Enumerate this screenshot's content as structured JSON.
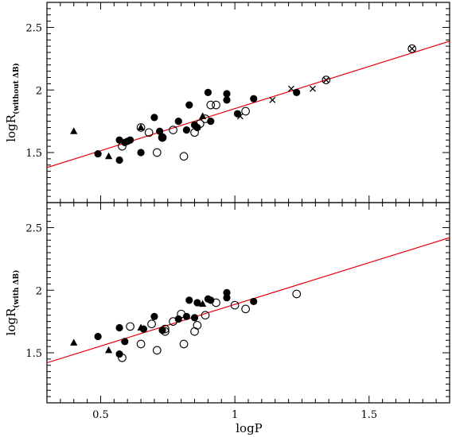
{
  "chart_data": [
    {
      "type": "scatter",
      "xlabel": "logP",
      "ylabel_main": "logR",
      "ylabel_sub": "(without ΔB)",
      "xlim": [
        0.3,
        1.8
      ],
      "ylim": [
        1.1,
        2.7
      ],
      "x_ticks": [
        0.5,
        1,
        1.5
      ],
      "x_tick_labels": [
        "0.5",
        "1",
        "1.5"
      ],
      "y_ticks": [
        1.5,
        2,
        2.5
      ],
      "y_tick_labels": [
        "1.5",
        "2",
        "2.5"
      ],
      "fit_line": {
        "x": [
          0.3,
          1.8
        ],
        "y": [
          1.38,
          2.39
        ],
        "color": "#e8000b"
      },
      "series": [
        {
          "marker": "filled-circle",
          "points": [
            [
              0.49,
              1.49
            ],
            [
              0.57,
              1.6
            ],
            [
              0.57,
              1.44
            ],
            [
              0.59,
              1.58
            ],
            [
              0.6,
              1.59
            ],
            [
              0.61,
              1.6
            ],
            [
              0.65,
              1.5
            ],
            [
              0.7,
              1.78
            ],
            [
              0.72,
              1.67
            ],
            [
              0.73,
              1.62
            ],
            [
              0.79,
              1.75
            ],
            [
              0.82,
              1.68
            ],
            [
              0.83,
              1.88
            ],
            [
              0.85,
              1.72
            ],
            [
              0.86,
              1.7
            ],
            [
              0.9,
              1.98
            ],
            [
              0.91,
              1.75
            ],
            [
              0.97,
              1.92
            ],
            [
              0.97,
              1.97
            ],
            [
              1.01,
              1.81
            ],
            [
              1.07,
              1.93
            ],
            [
              1.23,
              1.98
            ]
          ]
        },
        {
          "marker": "open-circle",
          "points": [
            [
              0.58,
              1.55
            ],
            [
              0.65,
              1.7
            ],
            [
              0.68,
              1.66
            ],
            [
              0.71,
              1.5
            ],
            [
              0.73,
              1.62
            ],
            [
              0.77,
              1.68
            ],
            [
              0.81,
              1.47
            ],
            [
              0.85,
              1.66
            ],
            [
              0.87,
              1.73
            ],
            [
              0.89,
              1.77
            ],
            [
              0.91,
              1.88
            ],
            [
              0.93,
              1.88
            ],
            [
              1.04,
              1.83
            ],
            [
              1.34,
              2.08
            ],
            [
              1.66,
              2.33
            ]
          ]
        },
        {
          "marker": "filled-triangle",
          "points": [
            [
              0.4,
              1.67
            ],
            [
              0.53,
              1.47
            ],
            [
              0.65,
              1.7
            ],
            [
              0.88,
              1.79
            ]
          ]
        },
        {
          "marker": "cross",
          "points": [
            [
              1.02,
              1.79
            ],
            [
              1.14,
              1.92
            ],
            [
              1.21,
              2.01
            ],
            [
              1.29,
              2.01
            ],
            [
              1.34,
              2.08
            ],
            [
              1.66,
              2.33
            ]
          ]
        }
      ]
    },
    {
      "type": "scatter",
      "xlabel": "logP",
      "ylabel_main": "logR",
      "ylabel_sub": "(with ΔB)",
      "xlim": [
        0.3,
        1.8
      ],
      "ylim": [
        1.1,
        2.7
      ],
      "x_ticks": [
        0.5,
        1,
        1.5
      ],
      "x_tick_labels": [
        "0.5",
        "1",
        "1.5"
      ],
      "y_ticks": [
        1.5,
        2,
        2.5
      ],
      "y_tick_labels": [
        "1.5",
        "2",
        "2.5"
      ],
      "fit_line": {
        "x": [
          0.3,
          1.8
        ],
        "y": [
          1.42,
          2.42
        ],
        "color": "#e8000b"
      },
      "series": [
        {
          "marker": "filled-circle",
          "points": [
            [
              0.49,
              1.63
            ],
            [
              0.57,
              1.7
            ],
            [
              0.57,
              1.49
            ],
            [
              0.59,
              1.59
            ],
            [
              0.66,
              1.69
            ],
            [
              0.7,
              1.79
            ],
            [
              0.73,
              1.68
            ],
            [
              0.79,
              1.77
            ],
            [
              0.82,
              1.79
            ],
            [
              0.83,
              1.92
            ],
            [
              0.85,
              1.78
            ],
            [
              0.86,
              1.9
            ],
            [
              0.9,
              1.93
            ],
            [
              0.91,
              1.92
            ],
            [
              0.97,
              1.94
            ],
            [
              0.97,
              1.98
            ],
            [
              1.07,
              1.91
            ]
          ]
        },
        {
          "marker": "open-circle",
          "points": [
            [
              0.58,
              1.46
            ],
            [
              0.61,
              1.71
            ],
            [
              0.65,
              1.57
            ],
            [
              0.69,
              1.73
            ],
            [
              0.71,
              1.52
            ],
            [
              0.74,
              1.67
            ],
            [
              0.74,
              1.69
            ],
            [
              0.77,
              1.75
            ],
            [
              0.8,
              1.81
            ],
            [
              0.81,
              1.57
            ],
            [
              0.85,
              1.67
            ],
            [
              0.86,
              1.72
            ],
            [
              0.89,
              1.8
            ],
            [
              0.93,
              1.9
            ],
            [
              1.0,
              1.88
            ],
            [
              1.04,
              1.85
            ],
            [
              1.23,
              1.97
            ]
          ]
        },
        {
          "marker": "filled-triangle",
          "points": [
            [
              0.4,
              1.58
            ],
            [
              0.53,
              1.52
            ],
            [
              0.65,
              1.7
            ],
            [
              0.88,
              1.89
            ]
          ]
        }
      ]
    }
  ]
}
